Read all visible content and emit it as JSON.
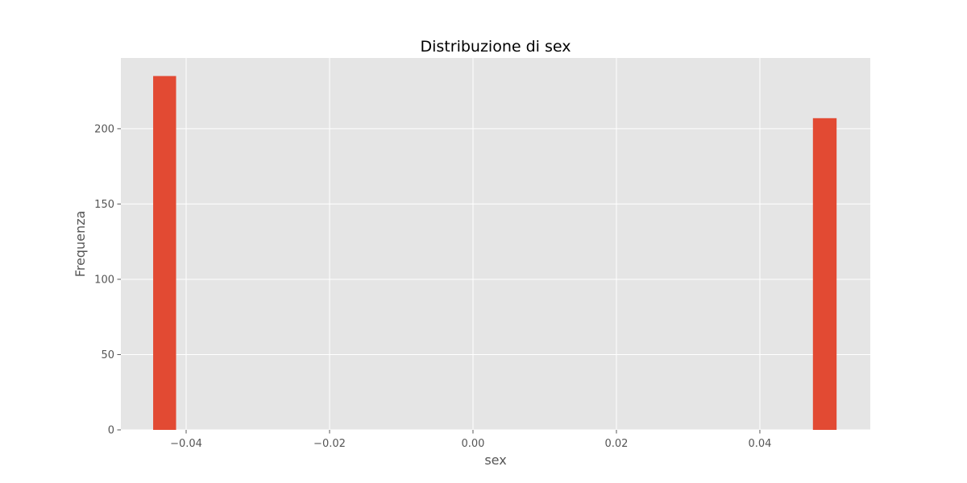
{
  "chart_data": {
    "type": "bar",
    "title": "Distribuzione di sex",
    "xlabel": "sex",
    "ylabel": "Frequenza",
    "xlim": [
      -0.0491,
      0.0554
    ],
    "ylim": [
      0,
      247
    ],
    "x_ticks": [
      -0.04,
      -0.02,
      0.0,
      0.02,
      0.04
    ],
    "x_tick_labels": [
      "−0.04",
      "−0.02",
      "0.00",
      "0.02",
      "0.04"
    ],
    "y_ticks": [
      0,
      50,
      100,
      150,
      200
    ],
    "y_tick_labels": [
      "0",
      "50",
      "100",
      "150",
      "200"
    ],
    "bins": [
      {
        "x_start": -0.0446,
        "x_end": -0.0414,
        "count": 235
      },
      {
        "x_start": 0.0474,
        "x_end": 0.0507,
        "count": 207
      }
    ],
    "grid": true,
    "colors": {
      "bar": "#e24a33",
      "plot_background": "#e5e5e5",
      "grid": "#ffffff",
      "text": "#555555",
      "title": "#000000"
    }
  }
}
